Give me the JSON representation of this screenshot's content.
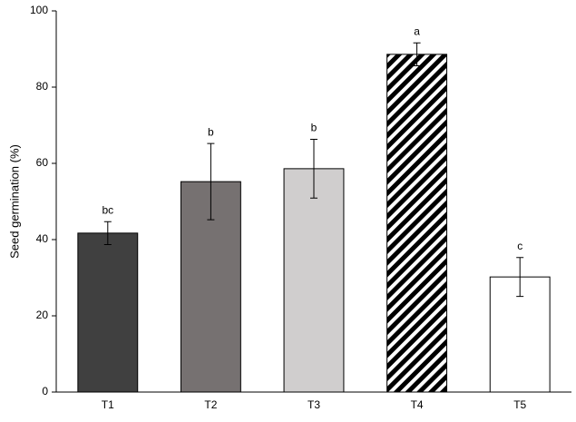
{
  "chart_data": {
    "type": "bar",
    "y_label": "Seed germination (%)",
    "categories": [
      "T1",
      "T2",
      "T3",
      "T4",
      "T5"
    ],
    "values": [
      41.7,
      55.2,
      58.6,
      88.6,
      30.2
    ],
    "errors": [
      3,
      10,
      7.7,
      3,
      5.1
    ],
    "value_labels": [
      "bc",
      "b",
      "b",
      "a",
      "c"
    ],
    "colors": [
      "#404040",
      "#767171",
      "#d0cece",
      "#000000",
      "#ffffff"
    ],
    "hatch": [
      false,
      false,
      false,
      true,
      false
    ],
    "ylim": [
      0,
      100
    ],
    "yticks": [
      0,
      20,
      40,
      60,
      80,
      100
    ],
    "grid": false
  }
}
